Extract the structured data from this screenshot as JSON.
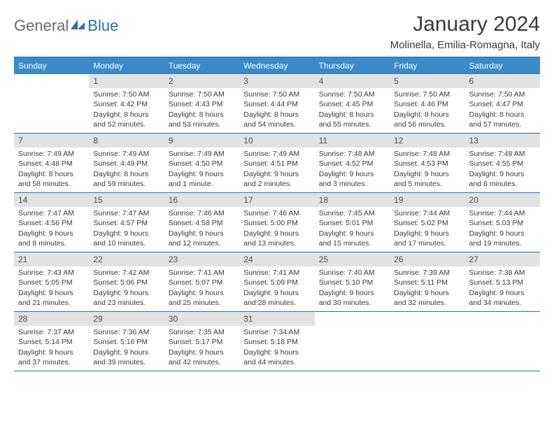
{
  "logo": {
    "text1": "General",
    "text2": "Blue"
  },
  "title": "January 2024",
  "location": "Molinella, Emilia-Romagna, Italy",
  "colors": {
    "header_bg": "#3a8ac9",
    "rule": "#2a6fb5",
    "daynum_bg": "#e2e2e2",
    "text": "#3a3a3a"
  },
  "day_names": [
    "Sunday",
    "Monday",
    "Tuesday",
    "Wednesday",
    "Thursday",
    "Friday",
    "Saturday"
  ],
  "weeks": [
    [
      {
        "n": "",
        "sr": "",
        "ss": "",
        "dl": ""
      },
      {
        "n": "1",
        "sr": "Sunrise: 7:50 AM",
        "ss": "Sunset: 4:42 PM",
        "dl": "Daylight: 8 hours and 52 minutes."
      },
      {
        "n": "2",
        "sr": "Sunrise: 7:50 AM",
        "ss": "Sunset: 4:43 PM",
        "dl": "Daylight: 8 hours and 53 minutes."
      },
      {
        "n": "3",
        "sr": "Sunrise: 7:50 AM",
        "ss": "Sunset: 4:44 PM",
        "dl": "Daylight: 8 hours and 54 minutes."
      },
      {
        "n": "4",
        "sr": "Sunrise: 7:50 AM",
        "ss": "Sunset: 4:45 PM",
        "dl": "Daylight: 8 hours and 55 minutes."
      },
      {
        "n": "5",
        "sr": "Sunrise: 7:50 AM",
        "ss": "Sunset: 4:46 PM",
        "dl": "Daylight: 8 hours and 56 minutes."
      },
      {
        "n": "6",
        "sr": "Sunrise: 7:50 AM",
        "ss": "Sunset: 4:47 PM",
        "dl": "Daylight: 8 hours and 57 minutes."
      }
    ],
    [
      {
        "n": "7",
        "sr": "Sunrise: 7:49 AM",
        "ss": "Sunset: 4:48 PM",
        "dl": "Daylight: 8 hours and 58 minutes."
      },
      {
        "n": "8",
        "sr": "Sunrise: 7:49 AM",
        "ss": "Sunset: 4:49 PM",
        "dl": "Daylight: 8 hours and 59 minutes."
      },
      {
        "n": "9",
        "sr": "Sunrise: 7:49 AM",
        "ss": "Sunset: 4:50 PM",
        "dl": "Daylight: 9 hours and 1 minute."
      },
      {
        "n": "10",
        "sr": "Sunrise: 7:49 AM",
        "ss": "Sunset: 4:51 PM",
        "dl": "Daylight: 9 hours and 2 minutes."
      },
      {
        "n": "11",
        "sr": "Sunrise: 7:48 AM",
        "ss": "Sunset: 4:52 PM",
        "dl": "Daylight: 9 hours and 3 minutes."
      },
      {
        "n": "12",
        "sr": "Sunrise: 7:48 AM",
        "ss": "Sunset: 4:53 PM",
        "dl": "Daylight: 9 hours and 5 minutes."
      },
      {
        "n": "13",
        "sr": "Sunrise: 7:48 AM",
        "ss": "Sunset: 4:55 PM",
        "dl": "Daylight: 9 hours and 6 minutes."
      }
    ],
    [
      {
        "n": "14",
        "sr": "Sunrise: 7:47 AM",
        "ss": "Sunset: 4:56 PM",
        "dl": "Daylight: 9 hours and 8 minutes."
      },
      {
        "n": "15",
        "sr": "Sunrise: 7:47 AM",
        "ss": "Sunset: 4:57 PM",
        "dl": "Daylight: 9 hours and 10 minutes."
      },
      {
        "n": "16",
        "sr": "Sunrise: 7:46 AM",
        "ss": "Sunset: 4:58 PM",
        "dl": "Daylight: 9 hours and 12 minutes."
      },
      {
        "n": "17",
        "sr": "Sunrise: 7:46 AM",
        "ss": "Sunset: 5:00 PM",
        "dl": "Daylight: 9 hours and 13 minutes."
      },
      {
        "n": "18",
        "sr": "Sunrise: 7:45 AM",
        "ss": "Sunset: 5:01 PM",
        "dl": "Daylight: 9 hours and 15 minutes."
      },
      {
        "n": "19",
        "sr": "Sunrise: 7:44 AM",
        "ss": "Sunset: 5:02 PM",
        "dl": "Daylight: 9 hours and 17 minutes."
      },
      {
        "n": "20",
        "sr": "Sunrise: 7:44 AM",
        "ss": "Sunset: 5:03 PM",
        "dl": "Daylight: 9 hours and 19 minutes."
      }
    ],
    [
      {
        "n": "21",
        "sr": "Sunrise: 7:43 AM",
        "ss": "Sunset: 5:05 PM",
        "dl": "Daylight: 9 hours and 21 minutes."
      },
      {
        "n": "22",
        "sr": "Sunrise: 7:42 AM",
        "ss": "Sunset: 5:06 PM",
        "dl": "Daylight: 9 hours and 23 minutes."
      },
      {
        "n": "23",
        "sr": "Sunrise: 7:41 AM",
        "ss": "Sunset: 5:07 PM",
        "dl": "Daylight: 9 hours and 25 minutes."
      },
      {
        "n": "24",
        "sr": "Sunrise: 7:41 AM",
        "ss": "Sunset: 5:09 PM",
        "dl": "Daylight: 9 hours and 28 minutes."
      },
      {
        "n": "25",
        "sr": "Sunrise: 7:40 AM",
        "ss": "Sunset: 5:10 PM",
        "dl": "Daylight: 9 hours and 30 minutes."
      },
      {
        "n": "26",
        "sr": "Sunrise: 7:39 AM",
        "ss": "Sunset: 5:11 PM",
        "dl": "Daylight: 9 hours and 32 minutes."
      },
      {
        "n": "27",
        "sr": "Sunrise: 7:38 AM",
        "ss": "Sunset: 5:13 PM",
        "dl": "Daylight: 9 hours and 34 minutes."
      }
    ],
    [
      {
        "n": "28",
        "sr": "Sunrise: 7:37 AM",
        "ss": "Sunset: 5:14 PM",
        "dl": "Daylight: 9 hours and 37 minutes."
      },
      {
        "n": "29",
        "sr": "Sunrise: 7:36 AM",
        "ss": "Sunset: 5:16 PM",
        "dl": "Daylight: 9 hours and 39 minutes."
      },
      {
        "n": "30",
        "sr": "Sunrise: 7:35 AM",
        "ss": "Sunset: 5:17 PM",
        "dl": "Daylight: 9 hours and 42 minutes."
      },
      {
        "n": "31",
        "sr": "Sunrise: 7:34 AM",
        "ss": "Sunset: 5:18 PM",
        "dl": "Daylight: 9 hours and 44 minutes."
      },
      {
        "n": "",
        "sr": "",
        "ss": "",
        "dl": ""
      },
      {
        "n": "",
        "sr": "",
        "ss": "",
        "dl": ""
      },
      {
        "n": "",
        "sr": "",
        "ss": "",
        "dl": ""
      }
    ]
  ]
}
